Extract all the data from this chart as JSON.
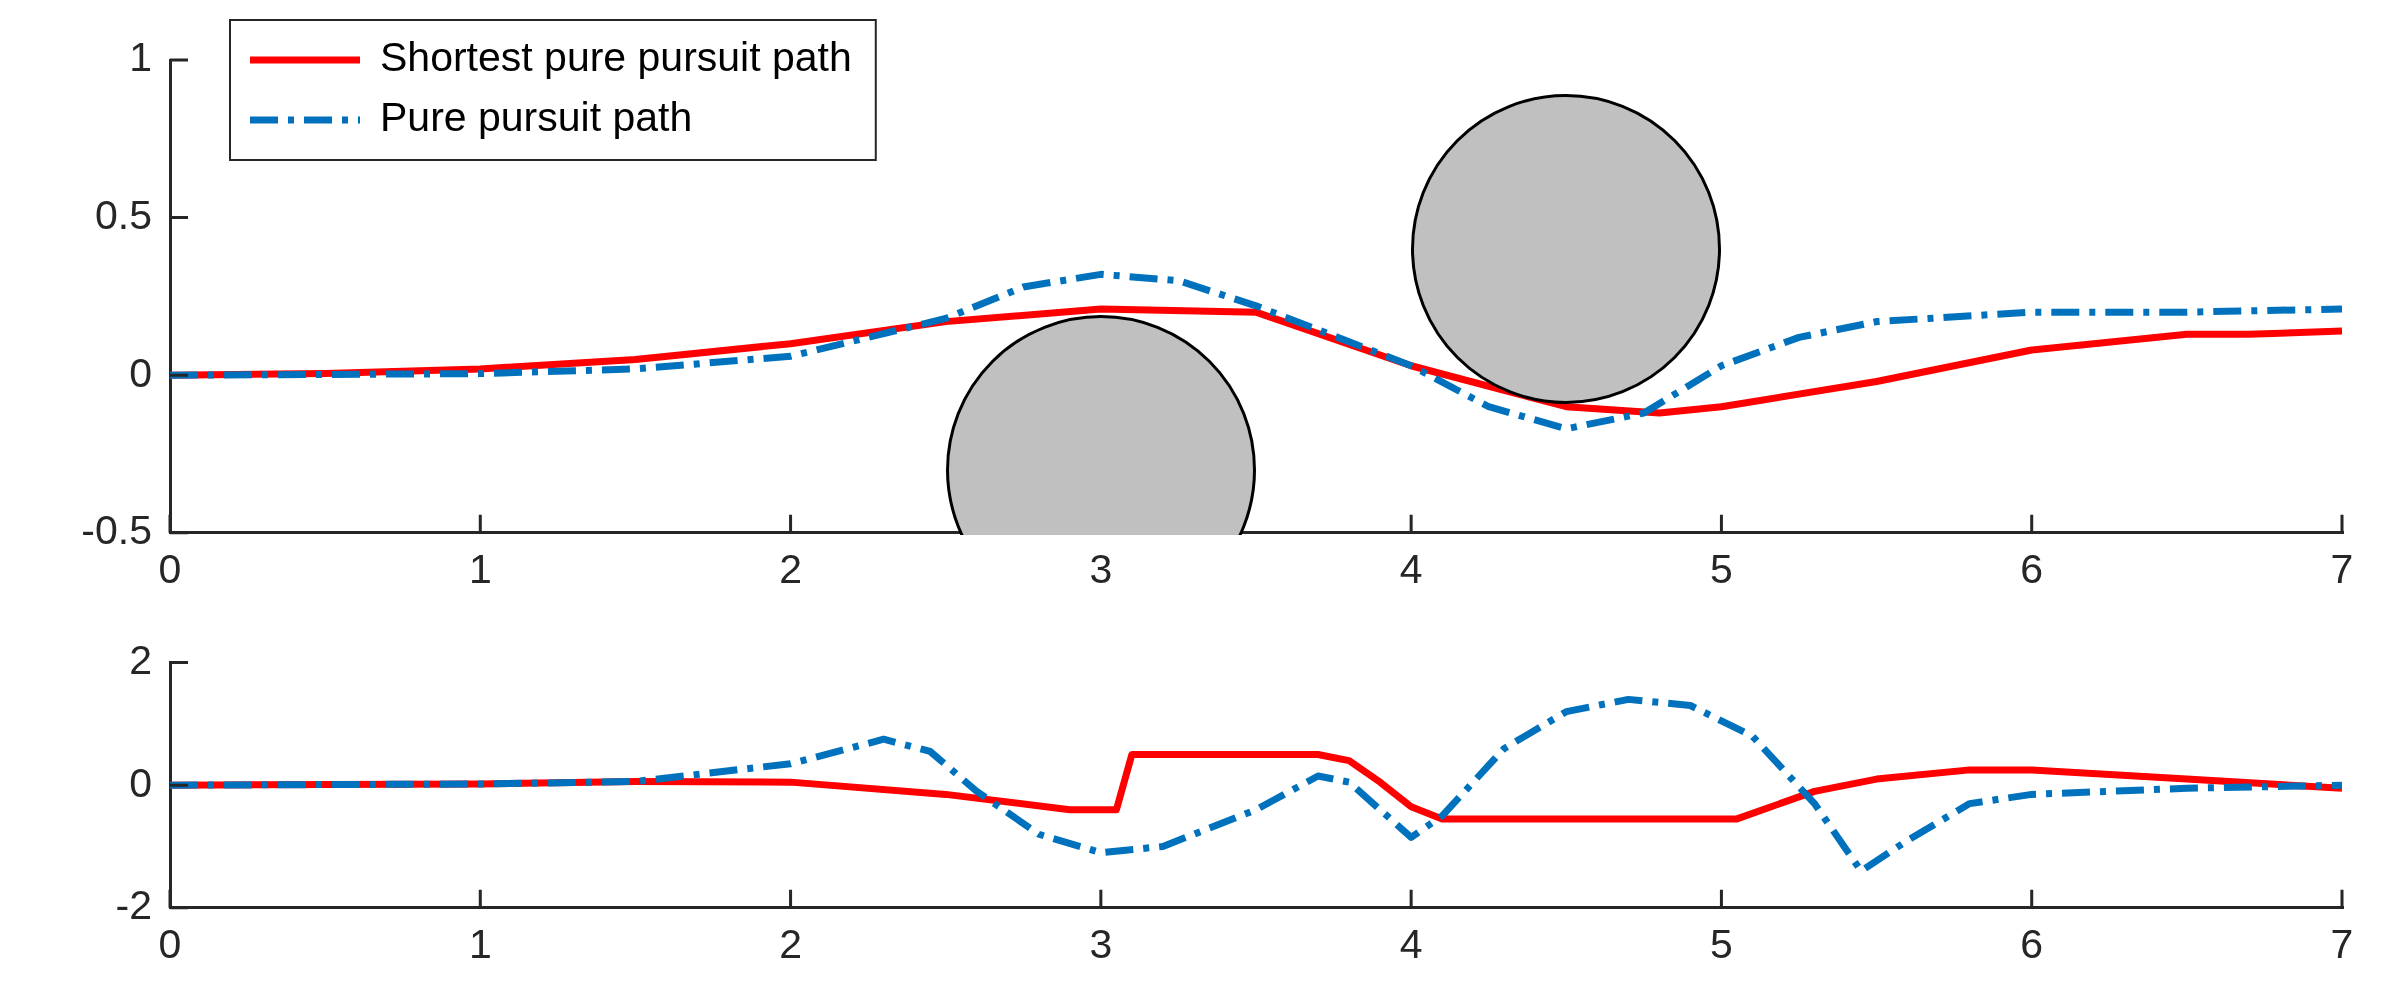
{
  "chart_data": [
    {
      "type": "line",
      "xlim": [
        0,
        7
      ],
      "xticks": [
        0,
        1,
        2,
        3,
        4,
        5,
        6,
        7
      ],
      "ylim": [
        -0.5,
        1
      ],
      "yticks": [
        -0.5,
        0,
        0.5,
        1
      ],
      "grid": false,
      "legend": "top left",
      "marker": "none",
      "series": [
        {
          "name": "Shortest pure pursuit path",
          "color": "#ff0000",
          "line_style": "solid",
          "x": [
            0,
            0.5,
            1,
            1.5,
            2,
            2.5,
            3,
            3.5,
            4,
            4.5,
            4.8,
            5,
            5.5,
            6,
            6.5,
            6.7,
            7
          ],
          "values": [
            0,
            0.005,
            0.02,
            0.05,
            0.1,
            0.17,
            0.21,
            0.2,
            0.03,
            -0.1,
            -0.12,
            -0.1,
            -0.02,
            0.08,
            0.13,
            0.13,
            0.14
          ]
        },
        {
          "name": "Pure pursuit path",
          "color": "#0072bd",
          "line_style": "dashed",
          "x": [
            0,
            1,
            1.5,
            2,
            2.5,
            2.75,
            3,
            3.25,
            3.5,
            4,
            4.25,
            4.5,
            4.75,
            5,
            5.25,
            5.5,
            6,
            6.5,
            7
          ],
          "values": [
            0,
            0.005,
            0.02,
            0.06,
            0.18,
            0.28,
            0.32,
            0.3,
            0.22,
            0.03,
            -0.1,
            -0.17,
            -0.12,
            0.03,
            0.12,
            0.17,
            0.2,
            0.2,
            0.21
          ]
        }
      ]
    },
    {
      "type": "line",
      "xlim": [
        0,
        7
      ],
      "xticks": [
        0,
        1,
        2,
        3,
        4,
        5,
        6,
        7
      ],
      "ylim": [
        -2,
        2
      ],
      "yticks": [
        -2,
        0,
        2
      ],
      "grid": false,
      "legend": false,
      "marker": "none",
      "series": [
        {
          "color": "#ff0000",
          "line_style": "solid",
          "x": [
            0,
            1,
            1.5,
            2,
            2.5,
            2.9,
            3.05,
            3.1,
            3.7,
            3.8,
            3.9,
            4.0,
            4.1,
            5.05,
            5.3,
            5.5,
            5.8,
            6.0,
            6.5,
            7
          ],
          "values": [
            0,
            0.02,
            0.06,
            0.05,
            -0.15,
            -0.4,
            -0.4,
            0.5,
            0.5,
            0.4,
            0.05,
            -0.35,
            -0.55,
            -0.55,
            -0.1,
            0.1,
            0.25,
            0.25,
            0.1,
            -0.05
          ]
        },
        {
          "color": "#0072bd",
          "line_style": "dashed",
          "x": [
            0,
            1,
            1.5,
            2,
            2.3,
            2.45,
            2.6,
            2.8,
            3,
            3.2,
            3.5,
            3.7,
            3.8,
            4.0,
            4.1,
            4.3,
            4.5,
            4.7,
            4.9,
            5.1,
            5.3,
            5.45,
            5.6,
            5.8,
            6,
            6.5,
            7
          ],
          "values": [
            0,
            0.02,
            0.06,
            0.35,
            0.75,
            0.55,
            -0.1,
            -0.8,
            -1.1,
            -1.0,
            -0.4,
            0.15,
            0.05,
            -0.85,
            -0.5,
            0.6,
            1.2,
            1.4,
            1.3,
            0.8,
            -0.3,
            -1.4,
            -0.9,
            -0.3,
            -0.15,
            -0.05,
            0
          ]
        }
      ]
    }
  ]
}
